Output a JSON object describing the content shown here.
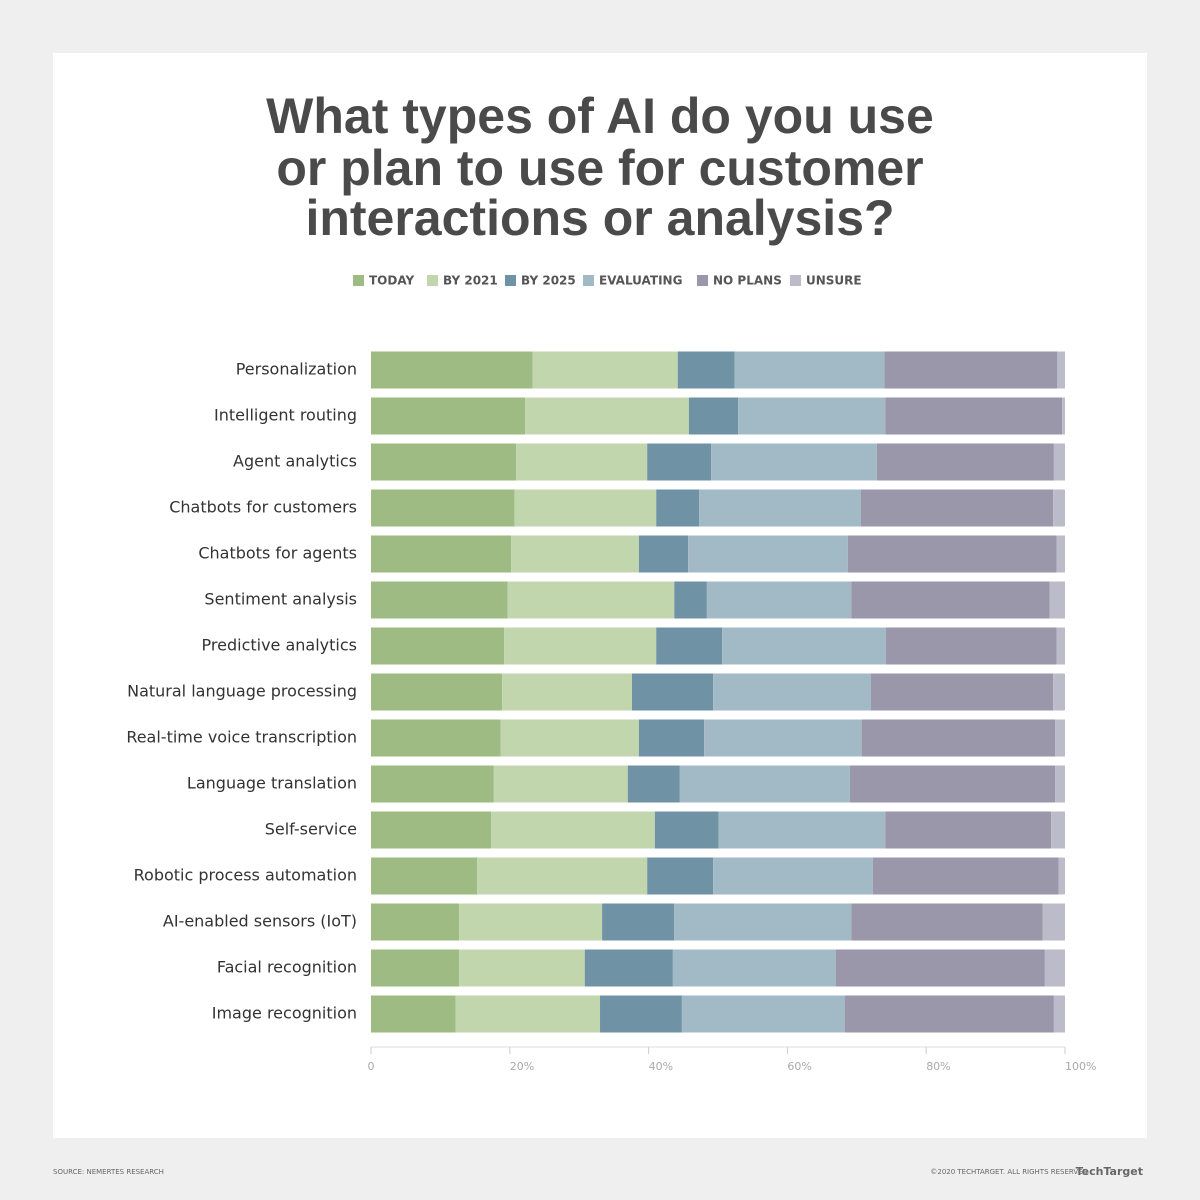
{
  "chart_data": {
    "type": "stacked-bar-horizontal",
    "title": [
      "What types of AI do you use",
      "or plan to use for customer",
      "interactions or analysis?"
    ],
    "categories": [
      "Personalization",
      "Intelligent routing",
      "Agent analytics",
      "Chatbots for customers",
      "Chatbots for agents",
      "Sentiment analysis",
      "Predictive analytics",
      "Natural language processing",
      "Real-time voice transcription",
      "Language translation",
      "Self-service",
      "Robotic process automation",
      "AI-enabled sensors (IoT)",
      "Facial recognition",
      "Image recognition"
    ],
    "series": [
      {
        "name": "TODAY",
        "color": "#9dbb82",
        "values": [
          23.3,
          22.2,
          20.9,
          20.7,
          20.2,
          19.7,
          19.2,
          18.9,
          18.7,
          17.7,
          17.3,
          15.3,
          12.7,
          12.7,
          12.2
        ]
      },
      {
        "name": "BY 2021",
        "color": "#c2d6ae",
        "values": [
          20.9,
          23.6,
          18.9,
          20.4,
          18.4,
          24.0,
          21.9,
          18.7,
          19.9,
          19.3,
          23.6,
          24.5,
          20.6,
          18.1,
          20.8
        ]
      },
      {
        "name": "BY 2025",
        "color": "#7092a5",
        "values": [
          8.2,
          7.1,
          9.2,
          6.2,
          7.1,
          4.7,
          9.5,
          11.7,
          9.4,
          7.5,
          9.2,
          9.5,
          10.4,
          12.7,
          11.8
        ]
      },
      {
        "name": "EVALUATING",
        "color": "#a2b9c6",
        "values": [
          21.6,
          21.2,
          23.9,
          23.3,
          23.0,
          20.8,
          23.6,
          22.7,
          22.7,
          24.5,
          24.0,
          23.0,
          25.5,
          23.5,
          23.5
        ]
      },
      {
        "name": "NO PLANS",
        "color": "#9a97ab",
        "values": [
          24.9,
          25.5,
          25.5,
          27.7,
          30.1,
          28.6,
          24.6,
          26.3,
          27.9,
          29.6,
          23.9,
          26.8,
          27.6,
          30.1,
          30.1
        ]
      },
      {
        "name": "UNSURE",
        "color": "#bcbbc9",
        "values": [
          1.1,
          0.4,
          1.6,
          1.7,
          1.2,
          2.2,
          1.2,
          1.7,
          1.4,
          1.4,
          2.0,
          0.9,
          3.2,
          2.9,
          1.6
        ]
      }
    ],
    "xlim": [
      0,
      100
    ],
    "xticks": [
      0,
      {
        "value": 20,
        "label": "20%"
      },
      {
        "value": 40,
        "label": "40%"
      },
      {
        "value": 60,
        "label": "60%"
      },
      {
        "value": 80,
        "label": "80%"
      },
      {
        "value": 100,
        "label": "100%"
      }
    ],
    "source": "SOURCE: NEMERTES RESEARCH",
    "copyright": "©2020 TECHTARGET. ALL RIGHTS RESERVED",
    "brand": "TechTarget"
  }
}
